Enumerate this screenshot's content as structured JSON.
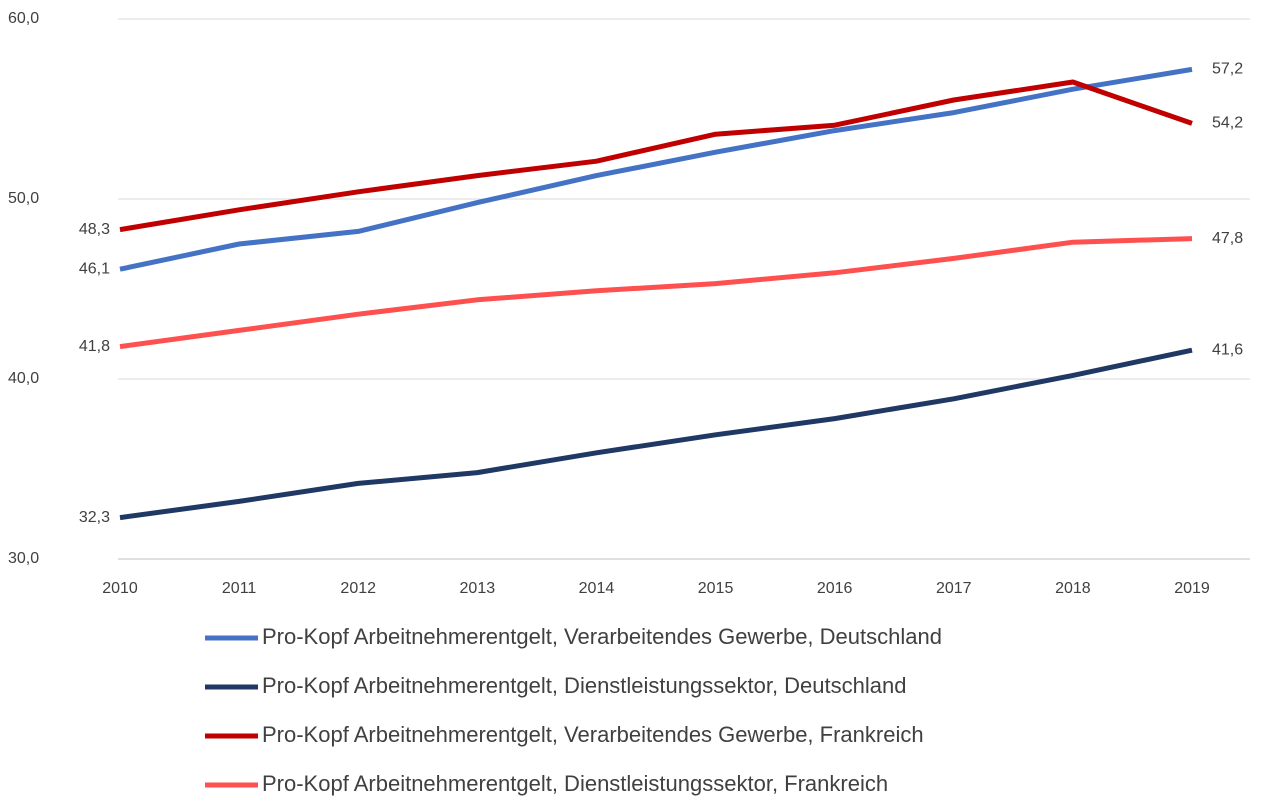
{
  "chart_data": {
    "type": "line",
    "categories": [
      "2010",
      "2011",
      "2012",
      "2013",
      "2014",
      "2015",
      "2016",
      "2017",
      "2018",
      "2019"
    ],
    "series": [
      {
        "name": "Pro-Kopf Arbeitnehmerentgelt, Verarbeitendes Gewerbe, Deutschland",
        "color": "#4472c4",
        "values": [
          46.1,
          47.5,
          48.2,
          49.8,
          51.3,
          52.6,
          53.8,
          54.8,
          56.1,
          57.2
        ],
        "value_labels": [
          "46,1",
          null,
          null,
          null,
          null,
          null,
          null,
          null,
          null,
          "57,2"
        ]
      },
      {
        "name": "Pro-Kopf Arbeitnehmerentgelt, Dienstleistungssektor, Deutschland",
        "color": "#203864",
        "values": [
          32.3,
          33.2,
          34.2,
          34.8,
          35.9,
          36.9,
          37.8,
          38.9,
          40.2,
          41.6
        ],
        "value_labels": [
          "32,3",
          null,
          null,
          null,
          null,
          null,
          null,
          null,
          null,
          "41,6"
        ]
      },
      {
        "name": "Pro-Kopf Arbeitnehmerentgelt, Verarbeitendes Gewerbe, Frankreich",
        "color": "#c00000",
        "values": [
          48.3,
          49.4,
          50.4,
          51.3,
          52.1,
          53.6,
          54.1,
          55.5,
          56.5,
          54.2
        ],
        "value_labels": [
          "48,3",
          null,
          null,
          null,
          null,
          null,
          null,
          null,
          null,
          "54,2"
        ]
      },
      {
        "name": "Pro-Kopf Arbeitnehmerentgelt, Dienstleistungssektor, Frankreich",
        "color": "#ff5050",
        "values": [
          41.8,
          42.7,
          43.6,
          44.4,
          44.9,
          45.3,
          45.9,
          46.7,
          47.6,
          47.8
        ],
        "value_labels": [
          "41,8",
          null,
          null,
          null,
          null,
          null,
          null,
          null,
          null,
          "47,8"
        ]
      }
    ],
    "ylim": [
      30,
      60
    ],
    "yticks": [
      {
        "value": 30,
        "label": "30,0"
      },
      {
        "value": 40,
        "label": "40,0"
      },
      {
        "value": 50,
        "label": "50,0"
      },
      {
        "value": 60,
        "label": "60,0"
      }
    ],
    "grid": true
  }
}
